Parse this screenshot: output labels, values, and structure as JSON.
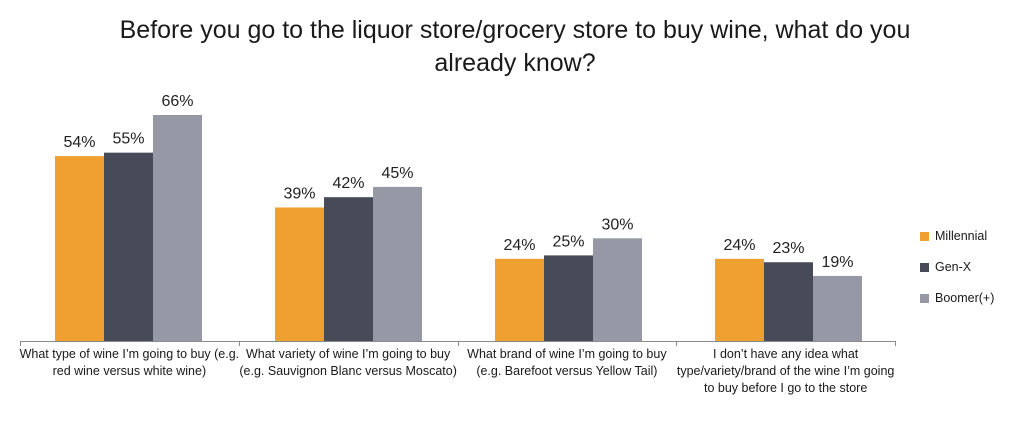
{
  "chart_data": {
    "type": "bar",
    "title": "Before you go to the liquor store/grocery store to buy wine, what do you already know?",
    "categories": [
      "What type of wine I’m going to buy (e.g. red wine versus white wine)",
      "What variety of wine I’m going to buy (e.g. Sauvignon Blanc versus Moscato)",
      "What brand of wine I’m going to buy (e.g. Barefoot versus Yellow Tail)",
      "I don’t have any idea what type/variety/brand of the wine I’m going to buy before I go to the store"
    ],
    "series": [
      {
        "name": "Millennial",
        "color": "#F0A030",
        "values": [
          54,
          39,
          24,
          24
        ],
        "labels": [
          "54%",
          "39%",
          "24%",
          "24%"
        ]
      },
      {
        "name": "Gen-X",
        "color": "#474B57",
        "values": [
          55,
          42,
          25,
          23
        ],
        "labels": [
          "55%",
          "42%",
          "25%",
          "23%"
        ]
      },
      {
        "name": "Boomer(+)",
        "color": "#9699A5",
        "values": [
          66,
          45,
          30,
          19
        ],
        "labels": [
          "66%",
          "45%",
          "30%",
          "19%"
        ]
      }
    ],
    "ylim": [
      0,
      66
    ],
    "legend_position": "right",
    "grid": false
  }
}
